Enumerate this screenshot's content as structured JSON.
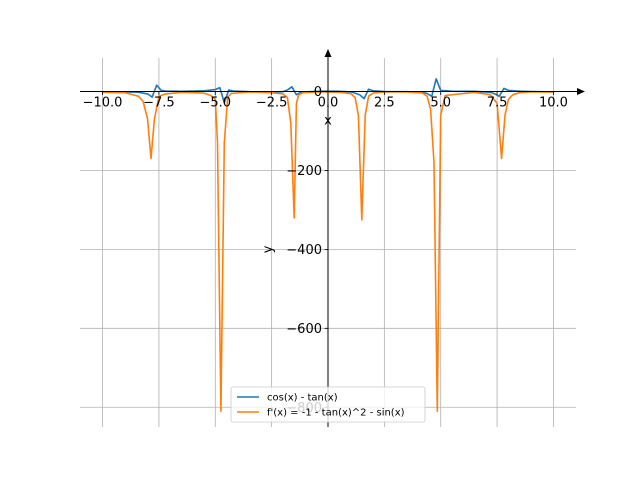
{
  "chart_data": {
    "type": "line",
    "xlabel": "x",
    "ylabel": "y",
    "xlim": [
      -11.0,
      11.0
    ],
    "ylim": [
      -850,
      85
    ],
    "grid": true,
    "legend_position": "bottom-center",
    "x_ticks": [
      -10.0,
      -7.5,
      -5.0,
      -2.5,
      0.0,
      2.5,
      5.0,
      7.5,
      10.0
    ],
    "x_tick_labels": [
      "−10.0",
      "−7.5",
      "−5.0",
      "−2.5",
      "0.0",
      "2.5",
      "5.0",
      "7.5",
      "10.0"
    ],
    "y_ticks": [
      0,
      -200,
      -400,
      -600,
      -800
    ],
    "y_tick_labels": [
      "0",
      "−200",
      "−400",
      "−600",
      "−800"
    ],
    "series": [
      {
        "name": "cos(x) - tan(x)",
        "color": "#1f77b4",
        "x": [
          -10.0,
          -9.0,
          -8.4,
          -8.0,
          -7.8,
          -7.6,
          -7.4,
          -7.2,
          -6.5,
          -5.5,
          -5.0,
          -4.8,
          -4.6,
          -4.4,
          -4.2,
          -3.5,
          -2.5,
          -2.0,
          -1.8,
          -1.6,
          -1.4,
          -1.2,
          -0.5,
          0.0,
          0.5,
          1.0,
          1.2,
          1.4,
          1.6,
          1.8,
          2.0,
          2.5,
          3.5,
          4.2,
          4.4,
          4.6,
          4.8,
          5.0,
          5.5,
          6.5,
          7.2,
          7.4,
          7.6,
          7.8,
          8.0,
          8.5,
          9.0,
          10.0
        ],
        "y": [
          -1.5,
          -0.8,
          -2.0,
          -6.0,
          -14.0,
          16.0,
          3.0,
          1.5,
          0.5,
          2.0,
          5.0,
          10.0,
          -28.0,
          4.0,
          1.5,
          -0.5,
          -1.5,
          -0.5,
          4.0,
          12.0,
          -8.0,
          -2.0,
          0.5,
          1.0,
          0.5,
          -1.0,
          -4.0,
          -8.0,
          -18.0,
          6.0,
          2.0,
          0.0,
          -0.5,
          -2.0,
          -5.0,
          -12.0,
          32.0,
          3.0,
          1.0,
          0.5,
          -2.0,
          -6.0,
          -12.0,
          8.0,
          3.0,
          1.0,
          0.0,
          -1.0
        ]
      },
      {
        "name": "f'(x) = -1 - tan(x)^2 - sin(x)",
        "color": "#ff7f0e",
        "x": [
          -10.0,
          -9.0,
          -8.4,
          -8.2,
          -8.0,
          -7.85,
          -7.7,
          -7.5,
          -7.2,
          -6.5,
          -5.5,
          -5.2,
          -5.0,
          -4.9,
          -4.75,
          -4.6,
          -4.45,
          -4.3,
          -3.5,
          -2.5,
          -2.0,
          -1.8,
          -1.65,
          -1.5,
          -1.4,
          -1.3,
          -1.1,
          -0.5,
          0.0,
          0.5,
          1.0,
          1.2,
          1.35,
          1.5,
          1.65,
          1.8,
          2.0,
          2.5,
          3.5,
          4.2,
          4.4,
          4.55,
          4.7,
          4.85,
          5.0,
          5.2,
          6.5,
          7.2,
          7.5,
          7.7,
          7.85,
          8.0,
          8.2,
          8.5,
          9.0,
          10.0
        ],
        "y": [
          -2.0,
          -3.0,
          -12.0,
          -25.0,
          -70.0,
          -170.0,
          -70.0,
          -12.0,
          -6.0,
          -2.0,
          -4.0,
          -10.0,
          -20.0,
          -130.0,
          -810.0,
          -130.0,
          -15.0,
          -5.0,
          -1.0,
          -3.0,
          -6.0,
          -15.0,
          -80.0,
          -320.0,
          -30.0,
          -8.0,
          -3.0,
          -1.0,
          -1.0,
          -2.0,
          -5.0,
          -15.0,
          -60.0,
          -325.0,
          -60.0,
          -12.0,
          -4.0,
          -1.0,
          -1.0,
          -4.0,
          -12.0,
          -45.0,
          -180.0,
          -810.0,
          -60.0,
          -10.0,
          -2.0,
          -8.0,
          -30.0,
          -170.0,
          -60.0,
          -20.0,
          -8.0,
          -3.0,
          -1.0,
          -1.0
        ]
      }
    ]
  }
}
